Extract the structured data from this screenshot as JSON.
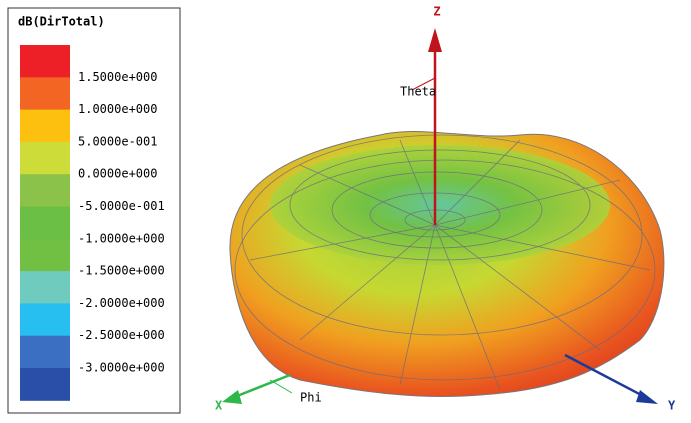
{
  "legend": {
    "title": "dB(DirTotal)",
    "labels": [
      "1.5000e+000",
      "1.0000e+000",
      "5.0000e-001",
      "0.0000e+000",
      "-5.0000e-001",
      "-1.0000e+000",
      "-1.5000e+000",
      "-2.0000e+000",
      "-2.5000e+000",
      "-3.0000e+000"
    ],
    "colors": [
      "#ee2027",
      "#f26522",
      "#fdc00f",
      "#cddc39",
      "#8bc34a",
      "#6cbf45",
      "#72c043",
      "#6fcbbd",
      "#27bff0",
      "#3a6fc1",
      "#2a4fa8"
    ]
  },
  "axes": {
    "z": "Z",
    "x": "X",
    "y": "Y",
    "theta": "Theta",
    "phi": "Phi"
  }
}
